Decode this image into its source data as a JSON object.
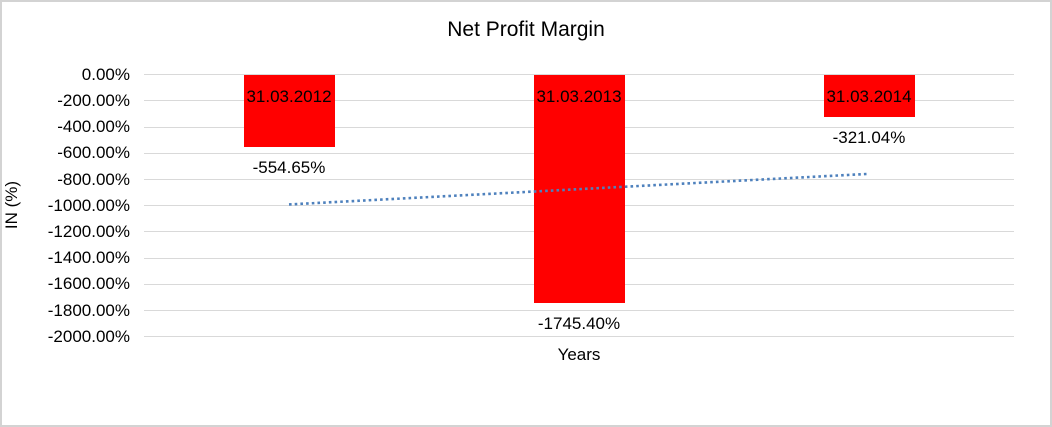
{
  "chart_data": {
    "type": "bar",
    "title": "Net Profit Margin",
    "categories": [
      "31.03.2012",
      "31.03.2013",
      "31.03.2014"
    ],
    "values": [
      -554.65,
      -1745.4,
      -321.04
    ],
    "value_labels": [
      "-554.65%",
      "-1745.40%",
      "-321.04%"
    ],
    "xlabel": "Years",
    "ylabel": "IN (%)",
    "ylim": [
      -2000,
      0
    ],
    "ytick_interval": 200,
    "ytick_labels": [
      "0.00%",
      "-200.00%",
      "-400.00%",
      "-600.00%",
      "-800.00%",
      "-1000.00%",
      "-1200.00%",
      "-1400.00%",
      "-1600.00%",
      "-1800.00%",
      "-2000.00%"
    ],
    "grid": true,
    "legend": "none",
    "bar_color": "#ff0000",
    "text_color": "#000000",
    "gridline_color": "#d9d9d9",
    "trendline": {
      "type": "linear",
      "style": "dotted",
      "color": "#4e81bd",
      "start_value": -990.5,
      "end_value": -756.9
    }
  }
}
